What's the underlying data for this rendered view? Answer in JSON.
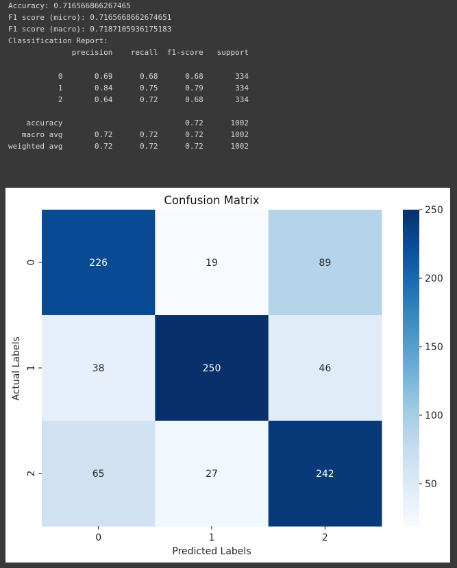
{
  "console": {
    "lines": [
      "Accuracy: 0.716566866267465",
      "F1 score (micro): 0.7165668662674651",
      "F1 score (macro): 0.7187105936175183",
      "Classification Report:",
      "              precision    recall  f1-score   support",
      "",
      "           0       0.69      0.68      0.68       334",
      "           1       0.84      0.75      0.79       334",
      "           2       0.64      0.72      0.68       334",
      "",
      "    accuracy                           0.72      1002",
      "   macro avg       0.72      0.72      0.72      1002",
      "weighted avg       0.72      0.72      0.72      1002"
    ]
  },
  "chart_data": {
    "type": "heatmap",
    "title": "Confusion Matrix",
    "xlabel": "Predicted Labels",
    "ylabel": "Actual Labels",
    "x_categories": [
      "0",
      "1",
      "2"
    ],
    "y_categories": [
      "0",
      "1",
      "2"
    ],
    "values": [
      [
        226,
        19,
        89
      ],
      [
        38,
        250,
        46
      ],
      [
        65,
        27,
        242
      ]
    ],
    "colormap": "Blues",
    "color_range": [
      19,
      250
    ],
    "colorbar_ticks": [
      50,
      100,
      150,
      200,
      250
    ],
    "annotations": true
  }
}
